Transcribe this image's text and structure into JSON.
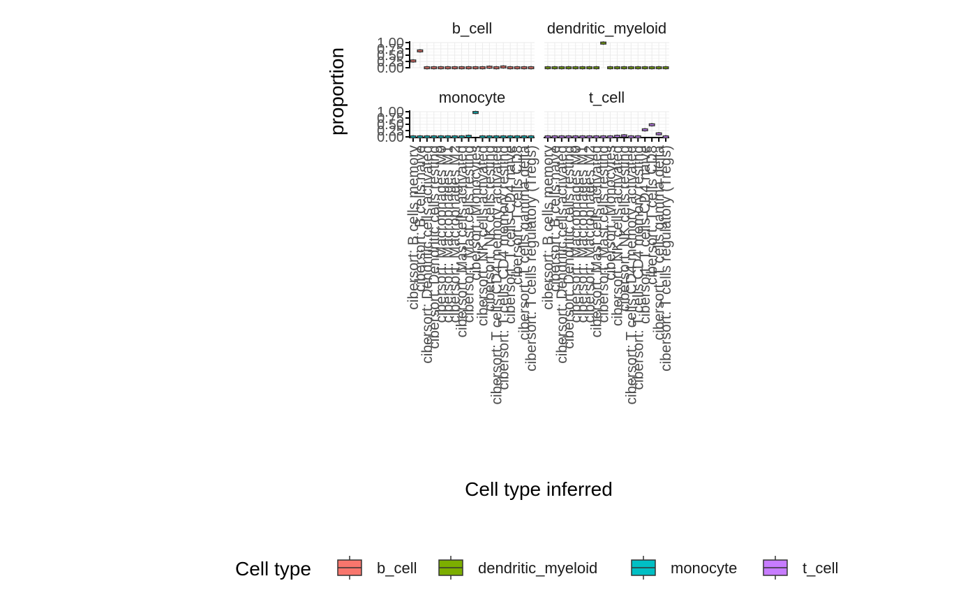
{
  "chart_data": {
    "type": "boxplot",
    "facet_layout": "wrap 2x2",
    "facets": [
      "b_cell",
      "dendritic_myeloid",
      "monocyte",
      "t_cell"
    ],
    "xlabel": "Cell type inferred",
    "ylabel": "proportion",
    "ylim": [
      0,
      1
    ],
    "yticks": [
      0.0,
      0.25,
      0.5,
      0.75,
      1.0
    ],
    "ytick_labels": [
      "0.00",
      "0.25",
      "0.50",
      "0.75",
      "1.00"
    ],
    "grid": true,
    "categories": [
      "cibersort: B cells memory",
      "cibersort: B cells naive",
      "cibersort: Dendritic cells activated",
      "cibersort: Dendritic cells resting",
      "cibersort: Macrophages M0",
      "cibersort: Macrophages M1",
      "cibersort: Macrophages M2",
      "cibersort: Mast cells activated",
      "cibersort: Mast cells resting",
      "cibersort: Monocytes",
      "cibersort: NK cells activated",
      "cibersort: NK cells resting",
      "cibersort: T cells CD4 memory activated",
      "cibersort: T cells CD4 memory resting",
      "cibersort: T cells CD4 naive",
      "cibersort: T cells CD8",
      "cibersort: T cells gamma delta",
      "cibersort: T cells regulatory (Tregs)"
    ],
    "series": [
      {
        "name": "b_cell",
        "facet": "b_cell",
        "color": "#F8766D",
        "values": [
          0.27,
          0.67,
          0.0,
          0.0,
          0.0,
          0.0,
          0.0,
          0.0,
          0.0,
          0.0,
          0.0,
          0.02,
          0.0,
          0.03,
          0.0,
          0.0,
          0.0,
          0.0
        ]
      },
      {
        "name": "dendritic_myeloid",
        "facet": "dendritic_myeloid",
        "color": "#7CAE00",
        "values": [
          0.0,
          0.0,
          0.0,
          0.0,
          0.0,
          0.0,
          0.0,
          0.0,
          0.98,
          0.0,
          0.0,
          0.0,
          0.0,
          0.0,
          0.0,
          0.0,
          0.0,
          0.0
        ]
      },
      {
        "name": "monocyte",
        "facet": "monocyte",
        "color": "#00BFC4",
        "values": [
          0.0,
          0.0,
          0.0,
          0.0,
          0.0,
          0.0,
          0.0,
          0.0,
          0.02,
          0.97,
          0.0,
          0.0,
          0.0,
          0.0,
          0.0,
          0.0,
          0.0,
          0.0
        ]
      },
      {
        "name": "t_cell",
        "facet": "t_cell",
        "color": "#C77CFF",
        "values": [
          0.0,
          0.0,
          0.0,
          0.0,
          0.0,
          0.0,
          0.0,
          0.0,
          0.0,
          0.0,
          0.02,
          0.04,
          0.0,
          0.0,
          0.28,
          0.48,
          0.12,
          0.0
        ]
      }
    ]
  },
  "legend": {
    "title": "Cell type",
    "position": "bottom",
    "items": [
      {
        "label": "b_cell",
        "color": "#F8766D"
      },
      {
        "label": "dendritic_myeloid",
        "color": "#7CAE00"
      },
      {
        "label": "monocyte",
        "color": "#00BFC4"
      },
      {
        "label": "t_cell",
        "color": "#C77CFF"
      }
    ]
  }
}
